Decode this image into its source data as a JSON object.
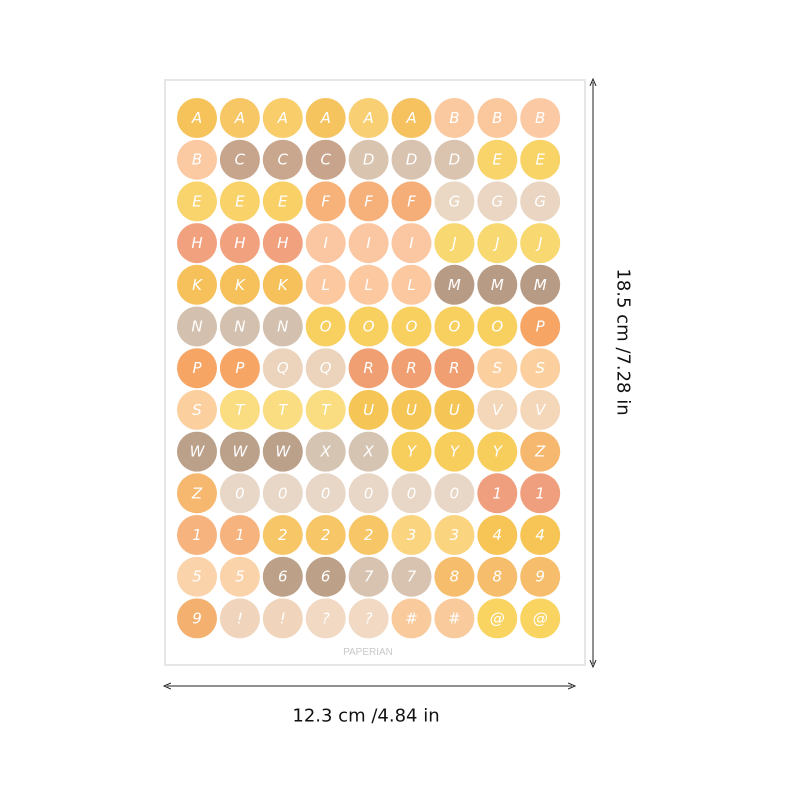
{
  "sheet": {
    "stickers": [
      [
        "A",
        "A",
        "A",
        "A",
        "A",
        "A",
        "B",
        "B",
        "B"
      ],
      [
        "B",
        "C",
        "C",
        "C",
        "D",
        "D",
        "D",
        "E",
        "E"
      ],
      [
        "E",
        "E",
        "E",
        "F",
        "F",
        "F",
        "G",
        "G",
        "G"
      ],
      [
        "H",
        "H",
        "H",
        "I",
        "I",
        "I",
        "J",
        "J",
        "J"
      ],
      [
        "K",
        "K",
        "K",
        "L",
        "L",
        "L",
        "M",
        "M",
        "M"
      ],
      [
        "N",
        "N",
        "N",
        "O",
        "O",
        "O",
        "O",
        "O",
        "P"
      ],
      [
        "P",
        "P",
        "Q",
        "Q",
        "R",
        "R",
        "R",
        "S",
        "S"
      ],
      [
        "S",
        "T",
        "T",
        "T",
        "U",
        "U",
        "U",
        "V",
        "V"
      ],
      [
        "W",
        "W",
        "W",
        "X",
        "X",
        "Y",
        "Y",
        "Y",
        "Z"
      ],
      [
        "Z",
        "0",
        "0",
        "0",
        "0",
        "0",
        "0",
        "1",
        "1"
      ],
      [
        "1",
        "1",
        "2",
        "2",
        "2",
        "3",
        "3",
        "4",
        "4"
      ],
      [
        "5",
        "5",
        "6",
        "6",
        "7",
        "7",
        "8",
        "8",
        "9"
      ],
      [
        "9",
        "!",
        "!",
        "?",
        "?",
        "#",
        "#",
        "@",
        "@"
      ]
    ],
    "brand": "PAPERIAN"
  },
  "dimensions": {
    "width": "12.3 cm /4.84 in",
    "height": "18.5 cm /7.28 in"
  }
}
